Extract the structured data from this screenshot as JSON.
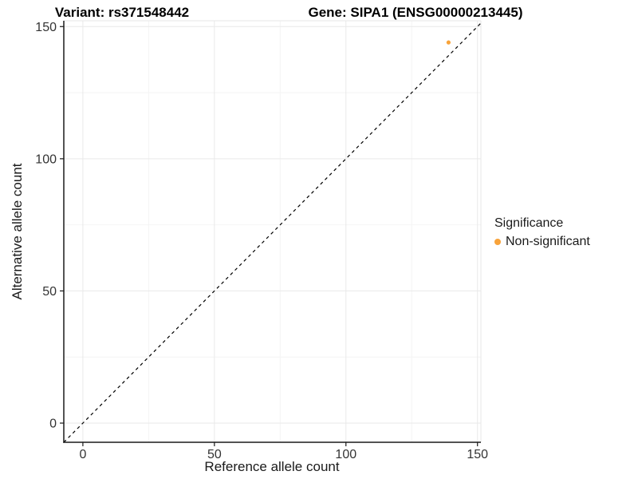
{
  "page": {
    "background": "#ffffff"
  },
  "header": {
    "title_left": "Variant: rs371548442",
    "title_right": "Gene: SIPA1 (ENSG00000213445)"
  },
  "chart_data": {
    "type": "scatter",
    "xlabel": "Reference allele count",
    "ylabel": "Alternative allele count",
    "xticks": [
      0,
      50,
      100,
      150
    ],
    "yticks": [
      0,
      50,
      100,
      150
    ],
    "minor_ticks": [
      25,
      75,
      125
    ],
    "xlim": [
      -7.25,
      151.3
    ],
    "ylim": [
      -7.25,
      152.2
    ],
    "grid": "major+minor",
    "identity_line": {
      "type": "abline",
      "slope": 1,
      "intercept": 0,
      "style": "dashed",
      "color": "#000000"
    },
    "series": [
      {
        "name": "Non-significant",
        "color": "#F8A33A",
        "points": [
          {
            "x": 139,
            "y": 144
          }
        ]
      }
    ],
    "legend": {
      "title": "Significance",
      "position": "right",
      "items": [
        {
          "label": "Non-significant",
          "color": "#F8A33A"
        }
      ]
    }
  },
  "style": {
    "axis_color": "#1a1a1a",
    "tick_label_color": "#333333",
    "grid_major_color": "#e9e9e9",
    "grid_minor_color": "#f4f4f4",
    "panel_border_color": "#e7e7e7",
    "point_color": "#F8A33A"
  }
}
